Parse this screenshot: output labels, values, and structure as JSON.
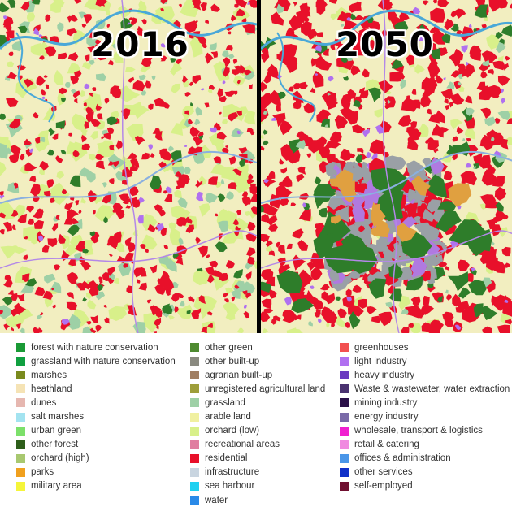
{
  "maps": {
    "left_year": "2016",
    "right_year": "2050",
    "divider_color": "#000000"
  },
  "legend": {
    "columns": [
      [
        {
          "label": "forest with nature conservation",
          "color": "#1a9a35"
        },
        {
          "label": "grassland with nature conservation",
          "color": "#10a040"
        },
        {
          "label": "marshes",
          "color": "#7a8a1e"
        },
        {
          "label": "heathland",
          "color": "#f5e3b5"
        },
        {
          "label": "dunes",
          "color": "#e6b7b0"
        },
        {
          "label": "salt marshes",
          "color": "#a3e3f0"
        },
        {
          "label": "urban green",
          "color": "#7ce06a"
        },
        {
          "label": "other forest",
          "color": "#2e5e1a"
        },
        {
          "label": "orchard (high)",
          "color": "#a8c870"
        },
        {
          "label": "parks",
          "color": "#f0a01e"
        },
        {
          "label": "military area",
          "color": "#f5f53a"
        }
      ],
      [
        {
          "label": "other green",
          "color": "#4e8a30"
        },
        {
          "label": "other built-up",
          "color": "#8a8a80"
        },
        {
          "label": "agrarian built-up",
          "color": "#a07e62"
        },
        {
          "label": "unregistered agricultural land",
          "color": "#9e9e3a"
        },
        {
          "label": "grassland",
          "color": "#9ed0a6"
        },
        {
          "label": "arable land",
          "color": "#f0f0a0"
        },
        {
          "label": "orchard (low)",
          "color": "#d8f08a"
        },
        {
          "label": "recreational areas",
          "color": "#e07ea0"
        },
        {
          "label": "residential",
          "color": "#e8102a"
        },
        {
          "label": "infrastructure",
          "color": "#c9d5e0"
        },
        {
          "label": "sea harbour",
          "color": "#1ed0f0"
        },
        {
          "label": "water",
          "color": "#2a8ae8"
        }
      ],
      [
        {
          "label": "greenhouses",
          "color": "#f25050"
        },
        {
          "label": "light industry",
          "color": "#b070f0"
        },
        {
          "label": "heavy industry",
          "color": "#6a38c0"
        },
        {
          "label": "Waste & wastewater, water extraction",
          "color": "#4a3270"
        },
        {
          "label": "mining industry",
          "color": "#2a1048"
        },
        {
          "label": "energy industry",
          "color": "#7a6aa8"
        },
        {
          "label": "wholesale, transport & logistics",
          "color": "#f020d0"
        },
        {
          "label": "retail & catering",
          "color": "#f08ae0"
        },
        {
          "label": "offices & administration",
          "color": "#4a96e8"
        },
        {
          "label": "other services",
          "color": "#1030c8"
        },
        {
          "label": "self-employed",
          "color": "#701030"
        }
      ]
    ]
  }
}
